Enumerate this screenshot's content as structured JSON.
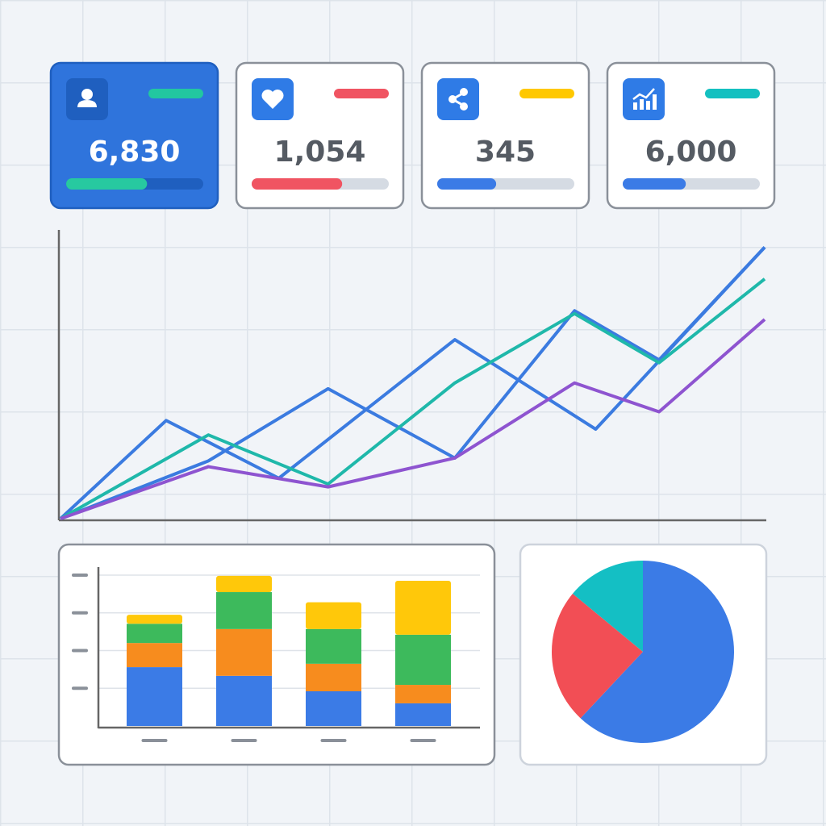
{
  "cards": [
    {
      "value": "6,830",
      "progress": 0.59,
      "accent": "#22c7a0",
      "bar_color": "#27c9a0",
      "selected": true
    },
    {
      "value": "1,054",
      "progress": 0.66,
      "accent": "#f05462",
      "bar_color": "#f05462",
      "selected": false
    },
    {
      "value": "345",
      "progress": 0.43,
      "accent": "#ffc800",
      "bar_color": "#3b7be6",
      "selected": false
    },
    {
      "value": "6,000",
      "progress": 0.46,
      "accent": "#14c0c0",
      "bar_color": "#3b7be6",
      "selected": false
    }
  ],
  "chart_data": [
    {
      "type": "line",
      "xlim": [
        0,
        100
      ],
      "ylim": [
        0,
        100
      ],
      "series": [
        {
          "color": "#3b7be0",
          "x": [
            0,
            15,
            31,
            56,
            76,
            100
          ],
          "values": [
            0,
            34,
            14,
            62,
            31,
            94
          ]
        },
        {
          "color": "#3b7be0",
          "x": [
            0,
            21,
            38,
            56,
            73,
            85,
            100
          ],
          "values": [
            0,
            20,
            45,
            21,
            72,
            55,
            94
          ]
        },
        {
          "color": "#1fb8aa",
          "x": [
            0,
            21,
            38,
            56,
            73,
            85,
            100
          ],
          "values": [
            0,
            29,
            12,
            47,
            71,
            54,
            83
          ]
        },
        {
          "color": "#8e54d0",
          "x": [
            0,
            21,
            38,
            56,
            73,
            85,
            100
          ],
          "values": [
            0,
            18,
            11,
            21,
            47,
            37,
            69
          ]
        }
      ]
    },
    {
      "type": "stacked-bar",
      "categories": [
        null,
        null,
        null,
        null
      ],
      "ylim": [
        0,
        4
      ],
      "yticks": [
        1,
        2,
        3,
        4
      ],
      "grid": true,
      "series": [
        {
          "color": "#3b7be6",
          "values": [
            1.56,
            1.33,
            0.92,
            0.6
          ]
        },
        {
          "color": "#f78c1e",
          "values": [
            0.64,
            1.24,
            0.73,
            0.49
          ]
        },
        {
          "color": "#3dba5c",
          "values": [
            0.51,
            0.98,
            0.92,
            1.33
          ]
        },
        {
          "color": "#ffc80a",
          "values": [
            0.24,
            0.43,
            0.71,
            1.43
          ]
        }
      ]
    },
    {
      "type": "pie",
      "values": [
        62,
        24,
        14
      ],
      "colors": [
        "#3b7be6",
        "#f24e55",
        "#14bfc4"
      ]
    }
  ]
}
